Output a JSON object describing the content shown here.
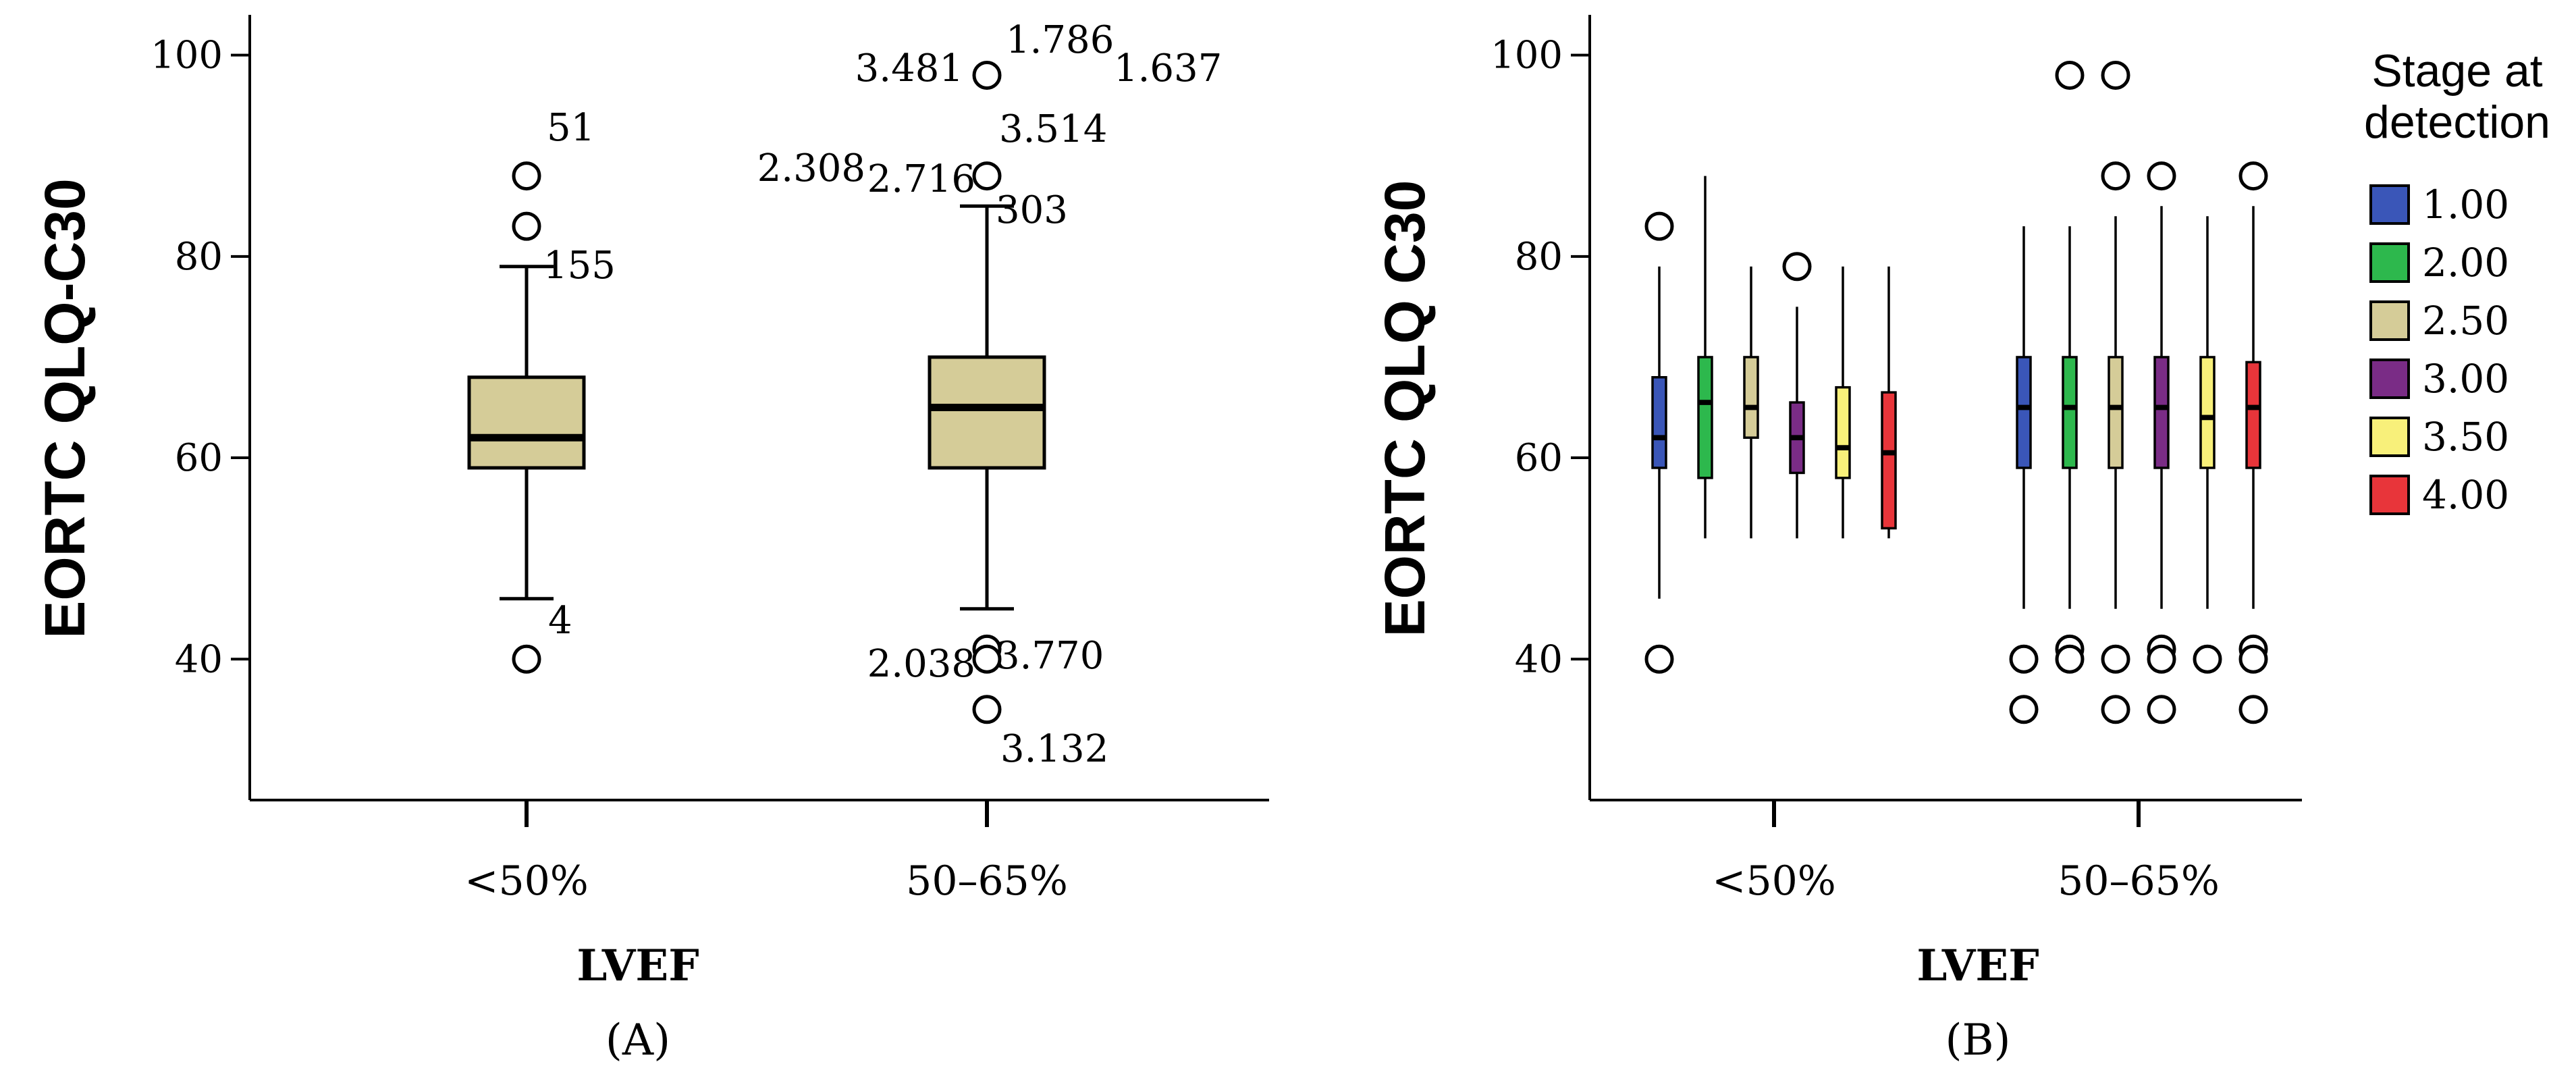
{
  "chart_data": [
    {
      "type": "boxplot",
      "panel_label": "(A)",
      "xlabel": "LVEF",
      "ylabel": "EORTC QLQ-C30",
      "ylim": [
        26,
        104
      ],
      "yticks": [
        "40",
        "60",
        "80",
        "100"
      ],
      "categories": [
        "<50%",
        "50–65%"
      ],
      "boxes": [
        {
          "category": "<50%",
          "min": 46,
          "q1": 59,
          "median": 62,
          "q3": 68,
          "max": 79,
          "outliers": [
            {
              "value": 88,
              "label": "51"
            },
            {
              "value": 83,
              "label": "155"
            },
            {
              "value": 40,
              "label": "4"
            }
          ]
        },
        {
          "category": "50–65%",
          "min": 45,
          "q1": 59,
          "median": 65,
          "q3": 70,
          "max": 85,
          "outliers": [
            {
              "value": 98,
              "label": "3.481"
            },
            {
              "value": 88,
              "label": "2.716"
            },
            {
              "value": 41,
              "label": "2.038"
            },
            {
              "value": 40,
              "label": "3.770"
            },
            {
              "value": 35,
              "label": "3.132"
            }
          ],
          "extra_labels": [
            "1.786",
            "1.637",
            "3.514",
            "2.308",
            "303"
          ]
        }
      ],
      "box_color": "#D5CC98"
    },
    {
      "type": "boxplot",
      "panel_label": "(B)",
      "xlabel": "LVEF",
      "ylabel": "EORTC QLQ C30",
      "ylim": [
        26,
        104
      ],
      "yticks": [
        "40",
        "60",
        "80",
        "100"
      ],
      "categories": [
        "<50%",
        "50–65%"
      ],
      "legend": {
        "title": [
          "Stage at",
          "detection"
        ],
        "position": "right",
        "entries": [
          {
            "label": "1.00",
            "color": "#3A56B8"
          },
          {
            "label": "2.00",
            "color": "#2DB84D"
          },
          {
            "label": "2.50",
            "color": "#D5CC98"
          },
          {
            "label": "3.00",
            "color": "#7A2C86"
          },
          {
            "label": "3.50",
            "color": "#F8F07A"
          },
          {
            "label": "4.00",
            "color": "#E8353A"
          }
        ]
      },
      "groups": [
        {
          "category": "<50%",
          "boxes": [
            {
              "stage": "1.00",
              "min": 46,
              "q1": 59,
              "median": 62,
              "q3": 68,
              "max": 79,
              "outliers": [
                83,
                40
              ]
            },
            {
              "stage": "2.00",
              "min": 52,
              "q1": 58,
              "median": 65.5,
              "q3": 70,
              "max": 88,
              "outliers": []
            },
            {
              "stage": "2.50",
              "min": 52,
              "q1": 62,
              "median": 65,
              "q3": 70,
              "max": 79,
              "outliers": []
            },
            {
              "stage": "3.00",
              "min": 52,
              "q1": 58.5,
              "median": 62,
              "q3": 65.5,
              "max": 75,
              "outliers": [
                79
              ]
            },
            {
              "stage": "3.50",
              "min": 52,
              "q1": 58,
              "median": 61,
              "q3": 67,
              "max": 79,
              "outliers": []
            },
            {
              "stage": "4.00",
              "min": 52,
              "q1": 53,
              "median": 60.5,
              "q3": 66.5,
              "max": 79,
              "outliers": []
            }
          ]
        },
        {
          "category": "50–65%",
          "boxes": [
            {
              "stage": "1.00",
              "min": 45,
              "q1": 59,
              "median": 65,
              "q3": 70,
              "max": 83,
              "outliers": [
                40,
                35
              ]
            },
            {
              "stage": "2.00",
              "min": 45,
              "q1": 59,
              "median": 65,
              "q3": 70,
              "max": 83,
              "outliers": [
                98,
                41,
                40
              ]
            },
            {
              "stage": "2.50",
              "min": 45,
              "q1": 59,
              "median": 65,
              "q3": 70,
              "max": 84,
              "outliers": [
                98,
                88,
                40,
                35
              ]
            },
            {
              "stage": "3.00",
              "min": 45,
              "q1": 59,
              "median": 65,
              "q3": 70,
              "max": 85,
              "outliers": [
                88,
                41,
                40,
                35
              ]
            },
            {
              "stage": "3.50",
              "min": 45,
              "q1": 59,
              "median": 64,
              "q3": 70,
              "max": 84,
              "outliers": [
                40
              ]
            },
            {
              "stage": "4.00",
              "min": 45,
              "q1": 59,
              "median": 65,
              "q3": 69.5,
              "max": 85,
              "outliers": [
                88,
                41,
                40,
                35
              ]
            }
          ]
        }
      ]
    }
  ]
}
